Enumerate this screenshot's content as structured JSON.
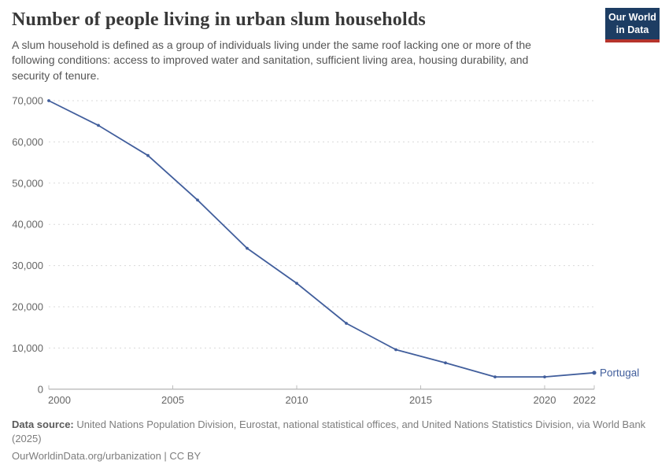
{
  "header": {
    "title": "Number of people living in urban slum households",
    "subtitle": "A slum household is defined as a group of individuals living under the same roof lacking one or more of the following conditions: access to improved water and sanitation, sufficient living area, housing durability, and security of tenure.",
    "logo": {
      "line1": "Our World",
      "line2": "in Data",
      "bg_color": "#1d3d63",
      "accent_color": "#b5342c"
    }
  },
  "chart_data": {
    "type": "line",
    "title": "Number of people living in urban slum households",
    "x": [
      2000,
      2002,
      2004,
      2006,
      2008,
      2010,
      2012,
      2014,
      2016,
      2018,
      2020,
      2022
    ],
    "series": [
      {
        "name": "Portugal",
        "color": "#415e9c",
        "values": [
          70000,
          64000,
          56700,
          45900,
          34200,
          25700,
          16000,
          9600,
          6400,
          3000,
          3000,
          4000
        ]
      }
    ],
    "x_ticks": [
      2000,
      2005,
      2010,
      2015,
      2020,
      2022
    ],
    "y_ticks": [
      0,
      10000,
      20000,
      30000,
      40000,
      50000,
      60000,
      70000
    ],
    "xlim": [
      2000,
      2022
    ],
    "ylim": [
      0,
      70000
    ],
    "xlabel": "",
    "ylabel": "",
    "grid": "horizontal-dashed",
    "legend_position": "end-of-line-label",
    "gridline_color": "#dadada",
    "axis_color": "#a3a3a3",
    "tick_mark_color": "#bdbdbd"
  },
  "footer": {
    "source_label": "Data source:",
    "source_text": " United Nations Population Division, Eurostat, national statistical offices, and United Nations Statistics Division, via World Bank (2025)",
    "attribution": "OurWorldinData.org/urbanization | CC BY"
  }
}
